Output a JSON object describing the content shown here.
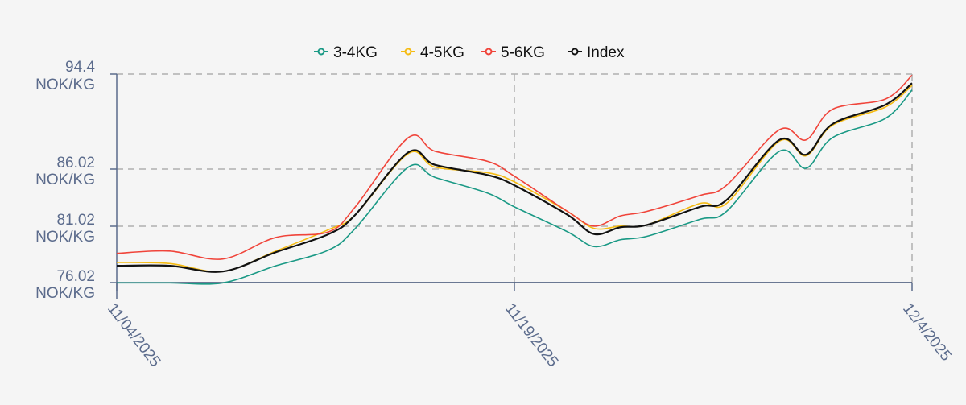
{
  "chart_data": {
    "type": "line",
    "title": "",
    "xlabel": "",
    "ylabel": "",
    "unit": "NOK/KG",
    "legend_position": "top-center",
    "grid": true,
    "ylim": [
      76.02,
      94.4
    ],
    "y_ticks": [
      "94.4",
      "86.02",
      "81.02",
      "76.02"
    ],
    "x_ticks": [
      "11/04/2025",
      "11/19/2025",
      "12/4/2025"
    ],
    "x_day_range": [
      0,
      30
    ],
    "x_days": [
      0,
      2,
      4,
      6,
      8,
      9,
      11,
      12,
      14,
      15,
      17,
      18,
      19,
      20,
      22,
      23,
      25,
      26,
      27,
      29,
      30
    ],
    "series": [
      {
        "name": "3-4KG",
        "color": "#1a9985",
        "values": [
          76.0,
          76.0,
          76.0,
          77.5,
          78.9,
          80.8,
          86.2,
          85.3,
          83.9,
          82.7,
          80.5,
          79.2,
          79.8,
          80.1,
          81.6,
          82.3,
          87.6,
          86.1,
          88.8,
          90.5,
          93.0
        ]
      },
      {
        "name": "4-5KG",
        "color": "#f5bb12",
        "values": [
          77.8,
          77.7,
          77.0,
          78.8,
          80.7,
          82.0,
          87.4,
          86.2,
          85.7,
          84.9,
          82.3,
          80.8,
          81.0,
          81.1,
          83.0,
          83.0,
          88.5,
          87.2,
          89.9,
          91.5,
          93.4
        ]
      },
      {
        "name": "5-6KG",
        "color": "#f0443a",
        "values": [
          78.6,
          78.8,
          78.1,
          80.0,
          80.5,
          82.7,
          88.8,
          87.6,
          86.7,
          85.4,
          82.3,
          81.0,
          81.9,
          82.3,
          83.7,
          84.6,
          89.5,
          88.6,
          91.3,
          92.2,
          94.3
        ]
      },
      {
        "name": "Index",
        "color": "#111111",
        "values": [
          77.5,
          77.5,
          77.0,
          78.7,
          80.3,
          82.0,
          87.5,
          86.4,
          85.5,
          84.6,
          82.0,
          80.3,
          80.9,
          81.1,
          82.7,
          83.3,
          88.6,
          87.3,
          90.0,
          91.7,
          93.6
        ]
      }
    ]
  }
}
